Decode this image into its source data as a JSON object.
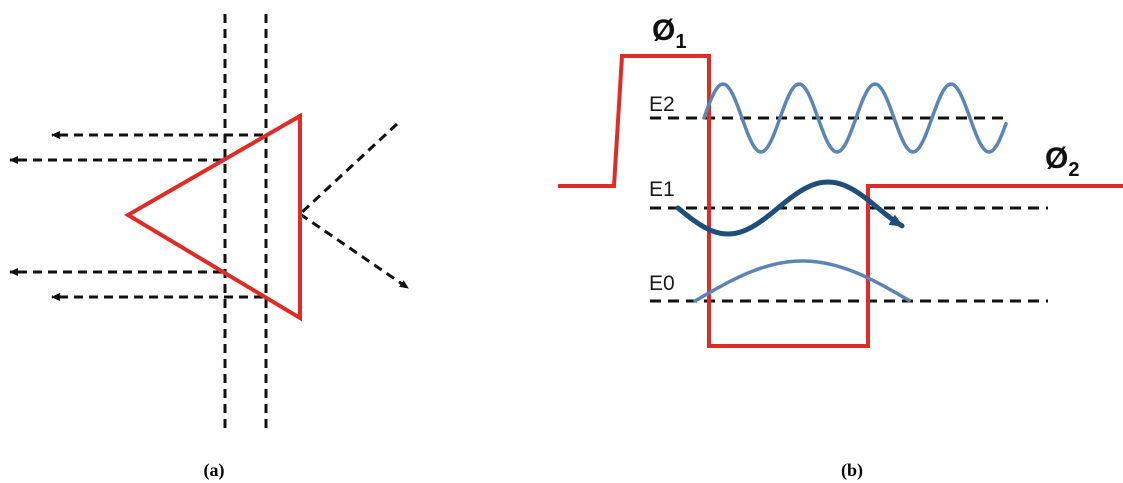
{
  "panel_a": {
    "caption": "(a)"
  },
  "panel_b": {
    "caption": "(b)",
    "barrier_left": {
      "symbol": "Ø",
      "subscript": "1"
    },
    "barrier_right": {
      "symbol": "Ø",
      "subscript": "2"
    },
    "levels": [
      {
        "label": "E2"
      },
      {
        "label": "E1"
      },
      {
        "label": "E0"
      }
    ]
  },
  "colors": {
    "potential": "#e02b27",
    "triangle": "#e02b27",
    "dashed": "#111111",
    "wave_light": "#5b86b4",
    "wave_dark": "#1f4e7a"
  }
}
